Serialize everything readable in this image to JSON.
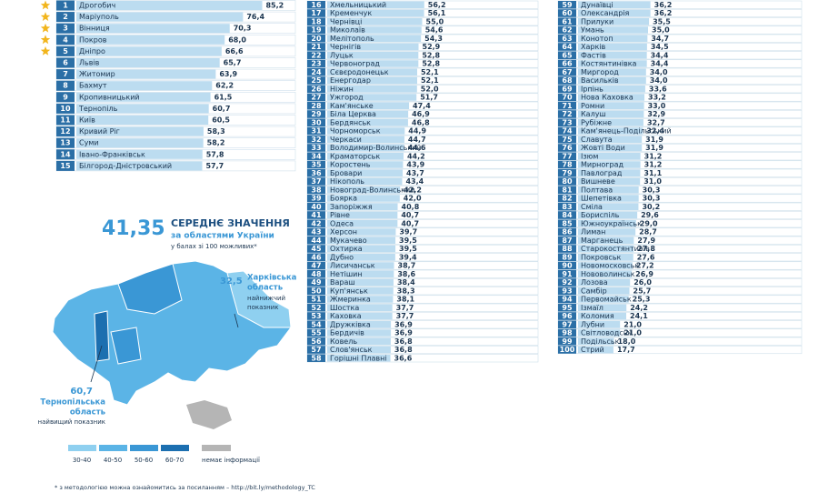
{
  "chart_data": {
    "type": "ranked-bar",
    "highlight_top": 5,
    "color": "#bcdcf0",
    "rank_color": "#2b6fa6",
    "star_color": "#f2b51c",
    "ranks": [
      1,
      2,
      3,
      4,
      5,
      6,
      7,
      8,
      9,
      10,
      11,
      12,
      13,
      14,
      15,
      16,
      17,
      18,
      19,
      20,
      21,
      22,
      23,
      24,
      25,
      26,
      27,
      28,
      29,
      30,
      31,
      32,
      33,
      34,
      35,
      36,
      37,
      38,
      39,
      40,
      41,
      42,
      43,
      44,
      45,
      46,
      47,
      48,
      49,
      50,
      51,
      52,
      53,
      54,
      55,
      56,
      57,
      58,
      59,
      60,
      61,
      62,
      63,
      64,
      65,
      66,
      67,
      68,
      69,
      70,
      71,
      72,
      73,
      74,
      75,
      76,
      77,
      78,
      79,
      80,
      81,
      82,
      83,
      84,
      85,
      86,
      87,
      88,
      89,
      90,
      91,
      92,
      93,
      94,
      95,
      96,
      97,
      98,
      99,
      100
    ],
    "categories": [
      "Дрогобич",
      "Маріуполь",
      "Вінниця",
      "Покров",
      "Дніпро",
      "Львів",
      "Житомир",
      "Бахмут",
      "Кропивницький",
      "Тернопіль",
      "Київ",
      "Кривий Ріг",
      "Суми",
      "Івано-Франківськ",
      "Білгород-Дністровський",
      "Хмельницький",
      "Кременчук",
      "Чернівці",
      "Миколаїв",
      "Мелітополь",
      "Чернігів",
      "Луцьк",
      "Червоноград",
      "Сєвєродонецьк",
      "Енергодар",
      "Ніжин",
      "Ужгород",
      "Кам'янське",
      "Біла Церква",
      "Бердянськ",
      "Чорноморськ",
      "Черкаси",
      "Володимир-Волинський",
      "Краматорськ",
      "Коростень",
      "Бровари",
      "Нікополь",
      "Новоград-Волинський",
      "Боярка",
      "Запоріжжя",
      "Рівне",
      "Одеса",
      "Херсон",
      "Мукачево",
      "Охтирка",
      "Дубно",
      "Лисичанськ",
      "Нетішин",
      "Вараш",
      "Куп'янськ",
      "Жмеринка",
      "Шостка",
      "Каховка",
      "Дружківка",
      "Бердичів",
      "Ковель",
      "Слов'янськ",
      "Горішні Плавні",
      "Дунаївці",
      "Олександрія",
      "Прилуки",
      "Умань",
      "Конотоп",
      "Харків",
      "Фастів",
      "Костянтинівка",
      "Миргород",
      "Васильків",
      "Ірпінь",
      "Нова Каховка",
      "Ромни",
      "Калуш",
      "Рубіжне",
      "Кам'янець-Подільський",
      "Славута",
      "Жовті Води",
      "Ізюм",
      "Мирноград",
      "Павлоград",
      "Вишневе",
      "Полтава",
      "Шепетівка",
      "Сміла",
      "Бориспіль",
      "Южноукраїнськ",
      "Лиман",
      "Марганець",
      "Старокостянтинів",
      "Покровськ",
      "Новомосковськ",
      "Нововолинськ",
      "Лозова",
      "Самбір",
      "Первомайськ",
      "Ізмаїл",
      "Коломия",
      "Лубни",
      "Світловодськ",
      "Подільськ",
      "Стрий"
    ],
    "values": [
      85.2,
      76.4,
      70.3,
      68.0,
      66.6,
      65.7,
      63.9,
      62.2,
      61.5,
      60.7,
      60.5,
      58.3,
      58.2,
      57.8,
      57.7,
      56.2,
      56.1,
      55.0,
      54.6,
      54.3,
      52.9,
      52.8,
      52.8,
      52.1,
      52.1,
      52.0,
      51.7,
      47.4,
      46.9,
      46.8,
      44.9,
      44.7,
      44.6,
      44.2,
      43.9,
      43.7,
      43.4,
      42.2,
      42.0,
      40.8,
      40.7,
      40.7,
      39.7,
      39.5,
      39.5,
      39.4,
      38.7,
      38.6,
      38.4,
      38.3,
      38.1,
      37.7,
      37.7,
      36.9,
      36.9,
      36.8,
      36.8,
      36.6,
      36.2,
      36.2,
      35.5,
      35.0,
      34.7,
      34.5,
      34.4,
      34.4,
      34.0,
      34.0,
      33.6,
      33.2,
      33.0,
      32.9,
      32.7,
      32.4,
      31.9,
      31.9,
      31.2,
      31.2,
      31.1,
      31.0,
      30.3,
      30.3,
      30.2,
      29.6,
      29.0,
      28.7,
      27.9,
      27.8,
      27.6,
      27.2,
      26.9,
      26.0,
      25.7,
      25.3,
      24.2,
      24.1,
      21.0,
      21.0,
      18.0,
      17.7
    ],
    "value_labels": [
      "85,2",
      "76,4",
      "70,3",
      "68,0",
      "66,6",
      "65,7",
      "63,9",
      "62,2",
      "61,5",
      "60,7",
      "60,5",
      "58,3",
      "58,2",
      "57,8",
      "57,7",
      "56,2",
      "56,1",
      "55,0",
      "54,6",
      "54,3",
      "52,9",
      "52,8",
      "52,8",
      "52,1",
      "52,1",
      "52,0",
      "51,7",
      "47,4",
      "46,9",
      "46,8",
      "44,9",
      "44,7",
      "44,6",
      "44,2",
      "43,9",
      "43,7",
      "43,4",
      "42,2",
      "42,0",
      "40,8",
      "40,7",
      "40,7",
      "39,7",
      "39,5",
      "39,5",
      "39,4",
      "38,7",
      "38,6",
      "38,4",
      "38,3",
      "38,1",
      "37,7",
      "37,7",
      "36,9",
      "36,9",
      "36,8",
      "36,8",
      "36,6",
      "36,2",
      "36,2",
      "35,5",
      "35,0",
      "34,7",
      "34,5",
      "34,4",
      "34,4",
      "34,0",
      "34,0",
      "33,6",
      "33,2",
      "33,0",
      "32,9",
      "32,7",
      "32,4",
      "31,9",
      "31,9",
      "31,2",
      "31,2",
      "31,1",
      "31,0",
      "30,3",
      "30,3",
      "30,2",
      "29,6",
      "29,0",
      "28,7",
      "27,9",
      "27,8",
      "27,6",
      "27,2",
      "26,9",
      "26,0",
      "25,7",
      "25,3",
      "24,2",
      "24,1",
      "21,0",
      "21,0",
      "18,0",
      "17,7"
    ]
  },
  "summary": {
    "value": "41,35",
    "title": "СЕРЕДНЄ ЗНАЧЕННЯ",
    "subtitle": "за областями України",
    "note": "у балах зі 100 можливих*"
  },
  "map": {
    "lowest": {
      "value": "32,5",
      "lines": [
        "Харківська",
        "область"
      ],
      "note": [
        "найнижчий",
        "показник"
      ]
    },
    "highest": {
      "value": "60,7",
      "lines": [
        "Тернопільська",
        "область"
      ],
      "note": [
        "найвищий показник"
      ]
    },
    "legend": [
      {
        "label": "30-40",
        "color": "#8fd0f0"
      },
      {
        "label": "40-50",
        "color": "#5bb4e6"
      },
      {
        "label": "50-60",
        "color": "#3a97d5"
      },
      {
        "label": "60-70",
        "color": "#1c6fb0"
      }
    ],
    "no_data": {
      "label": "немає інформації",
      "color": "#b5b5b5"
    }
  },
  "footnote": "* з методологією можна ознайомитись за посиланням – http://bit.ly/methodology_TC"
}
